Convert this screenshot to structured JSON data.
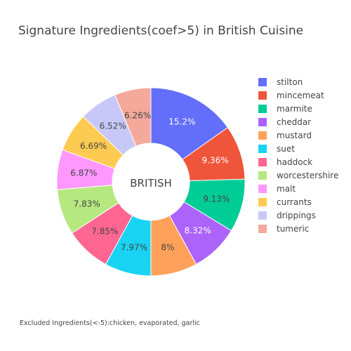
{
  "chart_data": {
    "type": "pie",
    "title": "Signature Ingredients(coef>5) in British Cuisine",
    "center_label": "BRITISH",
    "hole": true,
    "legend_position": "right",
    "categories": [
      "stilton",
      "mincemeat",
      "marmite",
      "cheddar",
      "mustard",
      "suet",
      "haddock",
      "worcestershire",
      "malt",
      "currants",
      "drippings",
      "tumeric"
    ],
    "values": [
      15.2,
      9.36,
      9.13,
      8.32,
      8,
      7.97,
      7.85,
      7.83,
      6.87,
      6.69,
      6.52,
      6.26
    ],
    "labels": [
      "15.2%",
      "9.36%",
      "9.13%",
      "8.32%",
      "8%",
      "7.97%",
      "7.85%",
      "7.83%",
      "6.87%",
      "6.69%",
      "6.52%",
      "6.26%"
    ],
    "colors": [
      "#636efa",
      "#ef553b",
      "#00cc96",
      "#ab63fa",
      "#ffa15a",
      "#19d3f3",
      "#ff6692",
      "#b6e880",
      "#ff97ff",
      "#fecb52",
      "#c8c8f8",
      "#f5a99b"
    ],
    "annotation": "Excluded Ingredients(<-5):chicken, evaporated, garlic"
  }
}
